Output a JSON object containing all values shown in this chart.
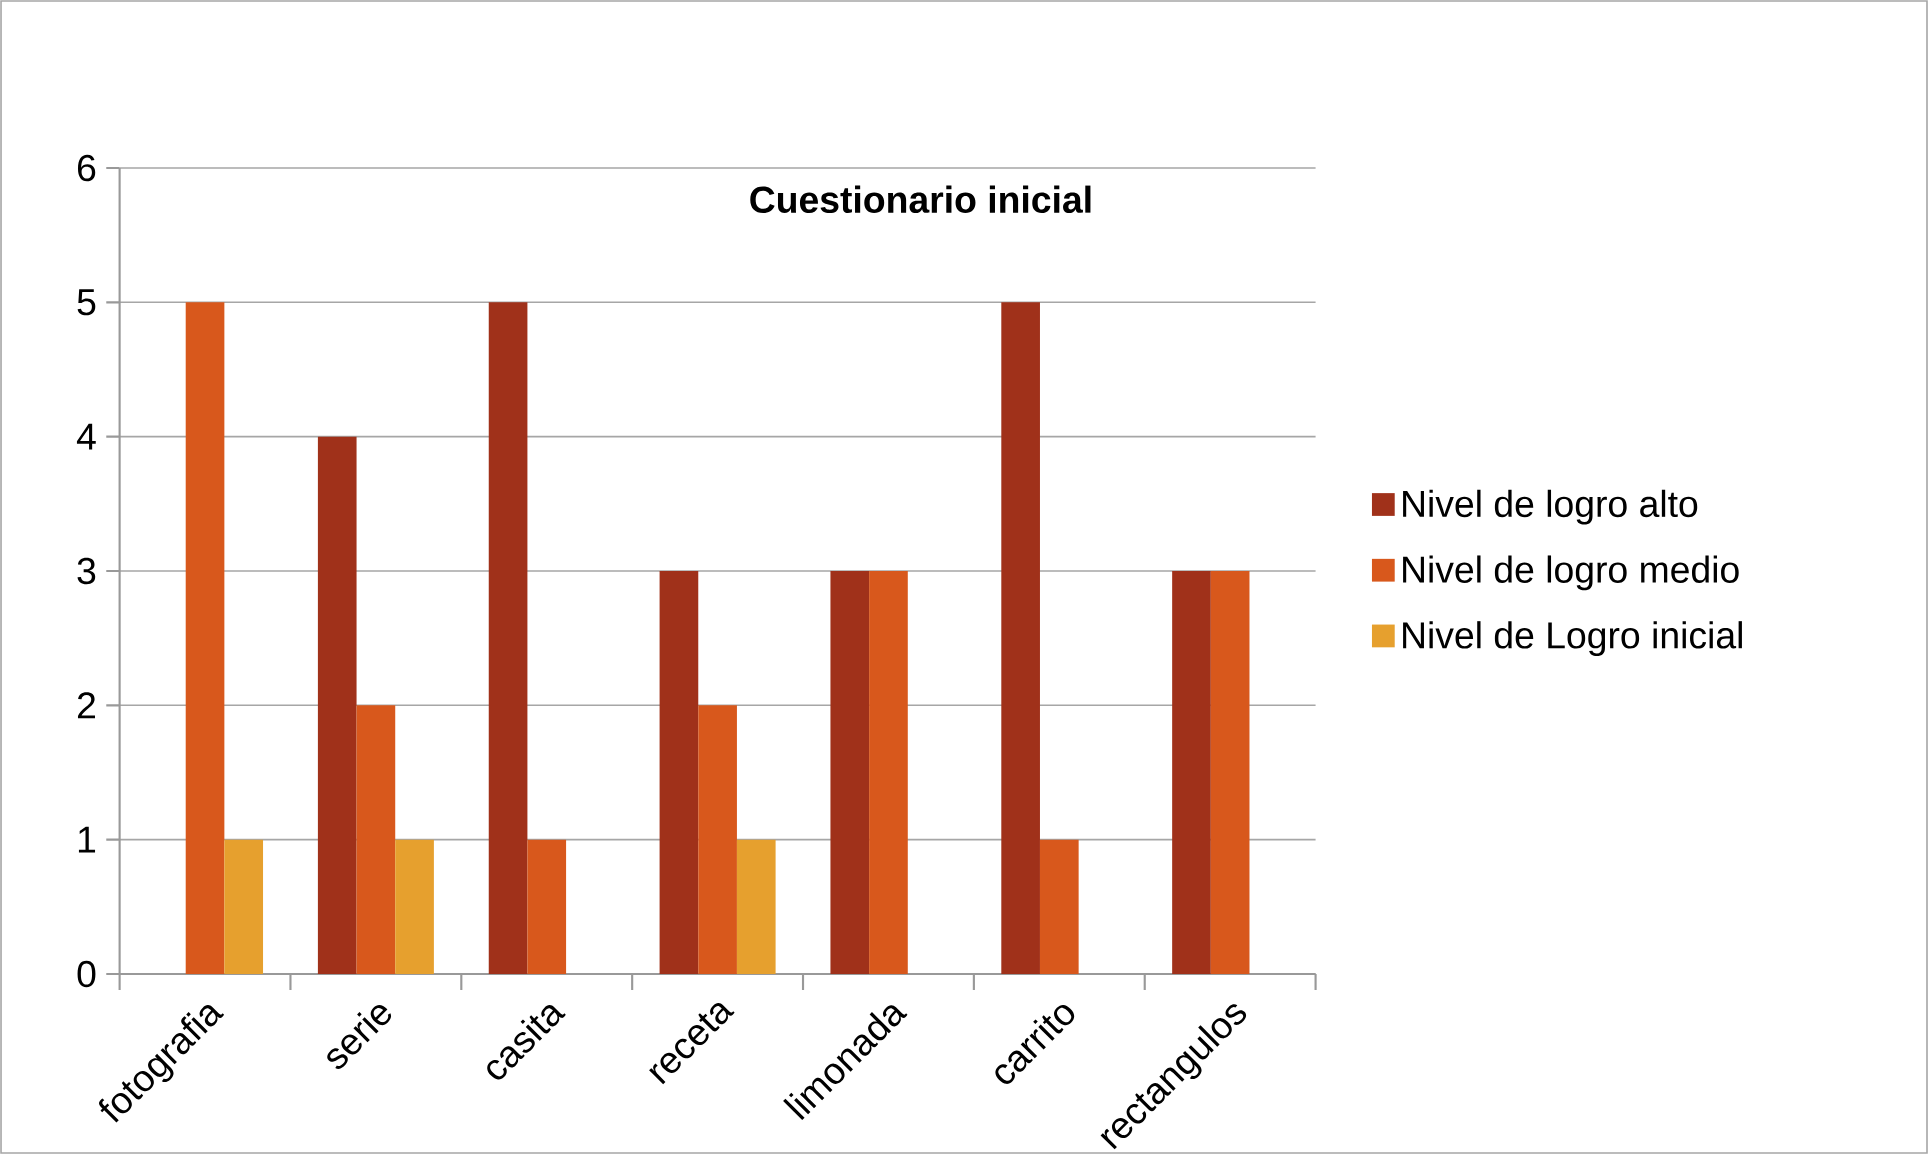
{
  "chart_data": {
    "type": "bar",
    "title": "Cuestionario inicial",
    "categories": [
      "fotografia",
      "serie",
      "casita",
      "receta",
      "limonada",
      "carrito",
      "rectangulos"
    ],
    "series": [
      {
        "name": "Nivel de logro alto",
        "color": "#a0311a",
        "values": [
          0,
          4,
          5,
          3,
          3,
          5,
          3
        ]
      },
      {
        "name": "Nivel de logro medio",
        "color": "#d8581c",
        "values": [
          5,
          2,
          1,
          2,
          3,
          1,
          3
        ]
      },
      {
        "name": "Nivel de Logro inicial",
        "color": "#e6a02e",
        "values": [
          1,
          1,
          0,
          1,
          0,
          0,
          0
        ]
      }
    ],
    "ylim": [
      0,
      6
    ],
    "yticks": [
      0,
      1,
      2,
      3,
      4,
      5,
      6
    ],
    "grid": "y",
    "legend": "right"
  }
}
